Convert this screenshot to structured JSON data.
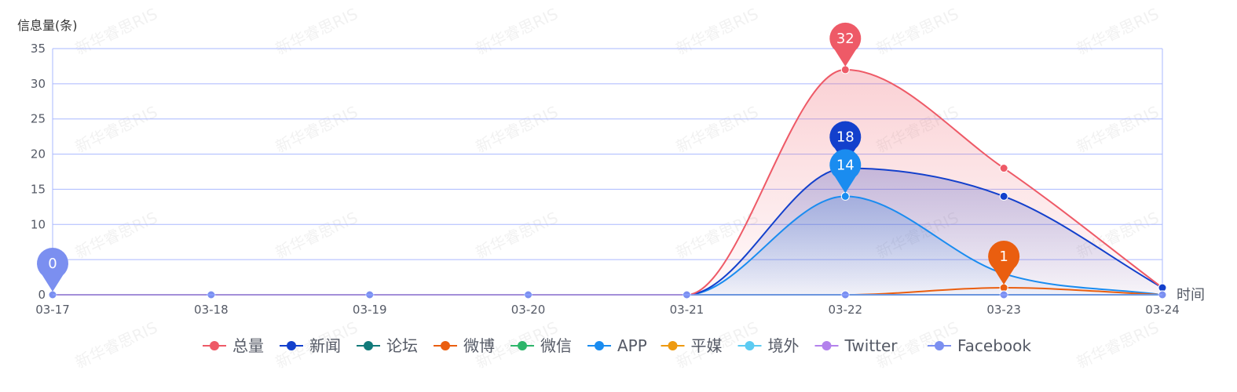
{
  "chart_data": {
    "type": "line",
    "ylabel": "信息量(条)",
    "xlabel": "时间",
    "categories": [
      "03-17",
      "03-18",
      "03-19",
      "03-20",
      "03-21",
      "03-22",
      "03-23",
      "03-24"
    ],
    "ylim": [
      0,
      35
    ],
    "yticks": [
      0,
      5,
      10,
      15,
      20,
      25,
      30,
      35
    ],
    "ytick_labels": [
      "0",
      "",
      "10",
      "15",
      "20",
      "25",
      "30",
      "35"
    ],
    "grid": true,
    "legend_position": "bottom",
    "series": [
      {
        "name": "总量",
        "color": "#ee5a67",
        "values": [
          0,
          0,
          0,
          0,
          0,
          32,
          18,
          1
        ],
        "fill": true
      },
      {
        "name": "新闻",
        "color": "#1340cc",
        "values": [
          0,
          0,
          0,
          0,
          0,
          18,
          14,
          1
        ],
        "fill": true
      },
      {
        "name": "论坛",
        "color": "#117a7a",
        "values": [
          0,
          0,
          0,
          0,
          0,
          0,
          0,
          0
        ]
      },
      {
        "name": "微博",
        "color": "#ea5e0f",
        "values": [
          0,
          0,
          0,
          0,
          0,
          0,
          1,
          0
        ]
      },
      {
        "name": "微信",
        "color": "#2db56a",
        "values": [
          0,
          0,
          0,
          0,
          0,
          0,
          0,
          0
        ]
      },
      {
        "name": "APP",
        "color": "#1a8cf0",
        "values": [
          0,
          0,
          0,
          0,
          0,
          14,
          3,
          0
        ],
        "fill": true
      },
      {
        "name": "平媒",
        "color": "#ee9a10",
        "values": [
          0,
          0,
          0,
          0,
          0,
          0,
          0,
          0
        ]
      },
      {
        "name": "境外",
        "color": "#5ccbf2",
        "values": [
          0,
          0,
          0,
          0,
          0,
          0,
          0,
          0
        ]
      },
      {
        "name": "Twitter",
        "color": "#b382ec",
        "values": [
          0,
          0,
          0,
          0,
          0,
          0,
          0,
          0
        ]
      },
      {
        "name": "Facebook",
        "color": "#7b8ff0",
        "values": [
          0,
          0,
          0,
          0,
          0,
          0,
          0,
          0
        ]
      }
    ],
    "annotations": [
      {
        "series": "总量",
        "category": "03-22",
        "value": 32,
        "label": "32"
      },
      {
        "series": "新闻",
        "category": "03-22",
        "value": 18,
        "label": "18"
      },
      {
        "series": "APP",
        "category": "03-22",
        "value": 14,
        "label": "14"
      },
      {
        "series": "微博",
        "category": "03-23",
        "value": 1,
        "label": "1"
      },
      {
        "series": "Facebook",
        "category": "03-17",
        "value": 0,
        "label": "0"
      }
    ]
  },
  "watermark_text": "新华睿思RIS"
}
